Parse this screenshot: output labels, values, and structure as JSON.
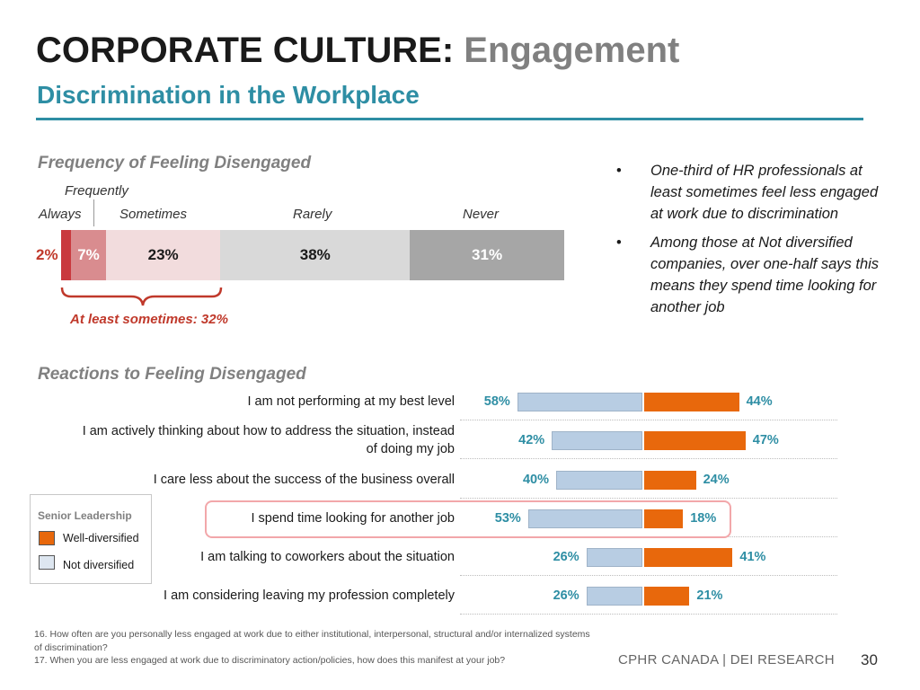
{
  "header": {
    "title_main": "CORPORATE CULTURE:",
    "title_accent": "Engagement",
    "subtitle": "Discrimination in the Workplace"
  },
  "frequency": {
    "section_title": "Frequency of Feeling Disengaged",
    "labels": {
      "frequently": "Frequently",
      "always": "Always",
      "sometimes": "Sometimes",
      "rarely": "Rarely",
      "never": "Never"
    },
    "brace_caption": "At least sometimes: 32%"
  },
  "bullets": [
    "One-third of HR professionals at least sometimes feel less engaged at work due to discrimination",
    "Among those at Not diversified companies, over one-half says this means they spend time looking for another job"
  ],
  "reactions": {
    "section_title": "Reactions to Feeling Disengaged",
    "rows": [
      {
        "label": "I am not performing at my best level",
        "not_label": "58%",
        "well_label": "44%"
      },
      {
        "label": "I am actively thinking about how to address the situation, instead of doing my job",
        "not_label": "42%",
        "well_label": "47%"
      },
      {
        "label": "I care less about the success of the business overall",
        "not_label": "40%",
        "well_label": "24%"
      },
      {
        "label": "I spend time looking for another job",
        "not_label": "53%",
        "well_label": "18%"
      },
      {
        "label": "I am talking to coworkers about the situation",
        "not_label": "26%",
        "well_label": "41%"
      },
      {
        "label": "I am considering leaving my profession completely",
        "not_label": "26%",
        "well_label": "21%"
      }
    ]
  },
  "legend": {
    "title": "Senior Leadership",
    "well": "Well-diversified",
    "not": "Not diversified"
  },
  "footnotes": {
    "q16": "16. How often are you personally less engaged at work due to either institutional, interpersonal, structural and/or internalized systems of discrimination?",
    "q17": "17. When you are less engaged at work due to discriminatory action/policies, how does this manifest at your job?"
  },
  "footer": {
    "brand": "CPHR CANADA | DEI RESEARCH",
    "page": "30"
  },
  "colors": {
    "teal": "#2e8ea4",
    "orange": "#e8680c",
    "light_blue": "#b8cde3",
    "red": "#c0392b"
  },
  "chart_data": [
    {
      "type": "bar",
      "stacked": true,
      "orientation": "horizontal",
      "title": "Frequency of Feeling Disengaged",
      "categories": [
        "Always",
        "Frequently",
        "Sometimes",
        "Rarely",
        "Never"
      ],
      "values": [
        2,
        7,
        23,
        38,
        31
      ],
      "labels": [
        "2%",
        "7%",
        "23%",
        "38%",
        "31%"
      ],
      "colors": [
        "#c9393e",
        "#d98c8f",
        "#f2dcdd",
        "#d9d9d9",
        "#a6a6a6"
      ],
      "label_colors": [
        "#c0392b",
        "#ffffff",
        "#1a1a1a",
        "#1a1a1a",
        "#ffffff"
      ]
    },
    {
      "type": "bar",
      "orientation": "horizontal",
      "title": "Reactions to Feeling Disengaged",
      "categories": [
        "I am not performing at my best level",
        "I am actively thinking about how to address the situation, instead of doing my job",
        "I care less about the success of the business overall",
        "I spend time looking for another job",
        "I am talking to coworkers about the situation",
        "I am considering leaving my profession completely"
      ],
      "series": [
        {
          "name": "Not diversified",
          "values": [
            58,
            42,
            40,
            53,
            26,
            26
          ]
        },
        {
          "name": "Well-diversified",
          "values": [
            44,
            47,
            24,
            18,
            41,
            21
          ]
        }
      ]
    }
  ]
}
